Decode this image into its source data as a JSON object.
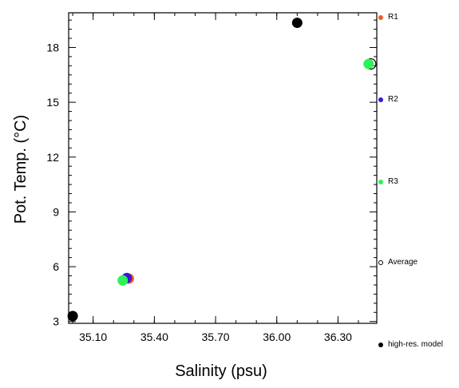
{
  "chart_data": {
    "type": "scatter",
    "xlabel": "Salinity (psu)",
    "ylabel": "Pot. Temp. (°C)",
    "xlim": [
      34.98,
      36.49
    ],
    "ylim": [
      2.9,
      19.9
    ],
    "x_ticks": [
      35.1,
      35.4,
      35.7,
      36.0,
      36.3
    ],
    "x_tick_labels": [
      "35.10",
      "35.40",
      "35.70",
      "36.00",
      "36.30"
    ],
    "y_ticks": [
      3,
      6,
      9,
      12,
      15,
      18
    ],
    "y_tick_labels": [
      "3",
      "6",
      "9",
      "12",
      "15",
      "18"
    ],
    "legend_position": "right",
    "series": [
      {
        "name": "R1",
        "color": "#f05a28",
        "hollow": false,
        "x": [
          35.275
        ],
        "y": [
          5.35
        ]
      },
      {
        "name": "R2",
        "color": "#3b17d6",
        "hollow": false,
        "x": [
          35.265
        ],
        "y": [
          5.38
        ]
      },
      {
        "name": "R3",
        "color": "#2ef25a",
        "hollow": false,
        "x": [
          35.245,
          36.45
        ],
        "y": [
          5.25,
          17.1
        ]
      },
      {
        "name": "Average",
        "color": "#000000",
        "hollow": true,
        "x": [
          36.46
        ],
        "y": [
          17.1
        ]
      },
      {
        "name": "high-res. model",
        "color": "#000000",
        "hollow": false,
        "x": [
          35.0,
          36.1
        ],
        "y": [
          3.3,
          19.35
        ]
      }
    ]
  }
}
